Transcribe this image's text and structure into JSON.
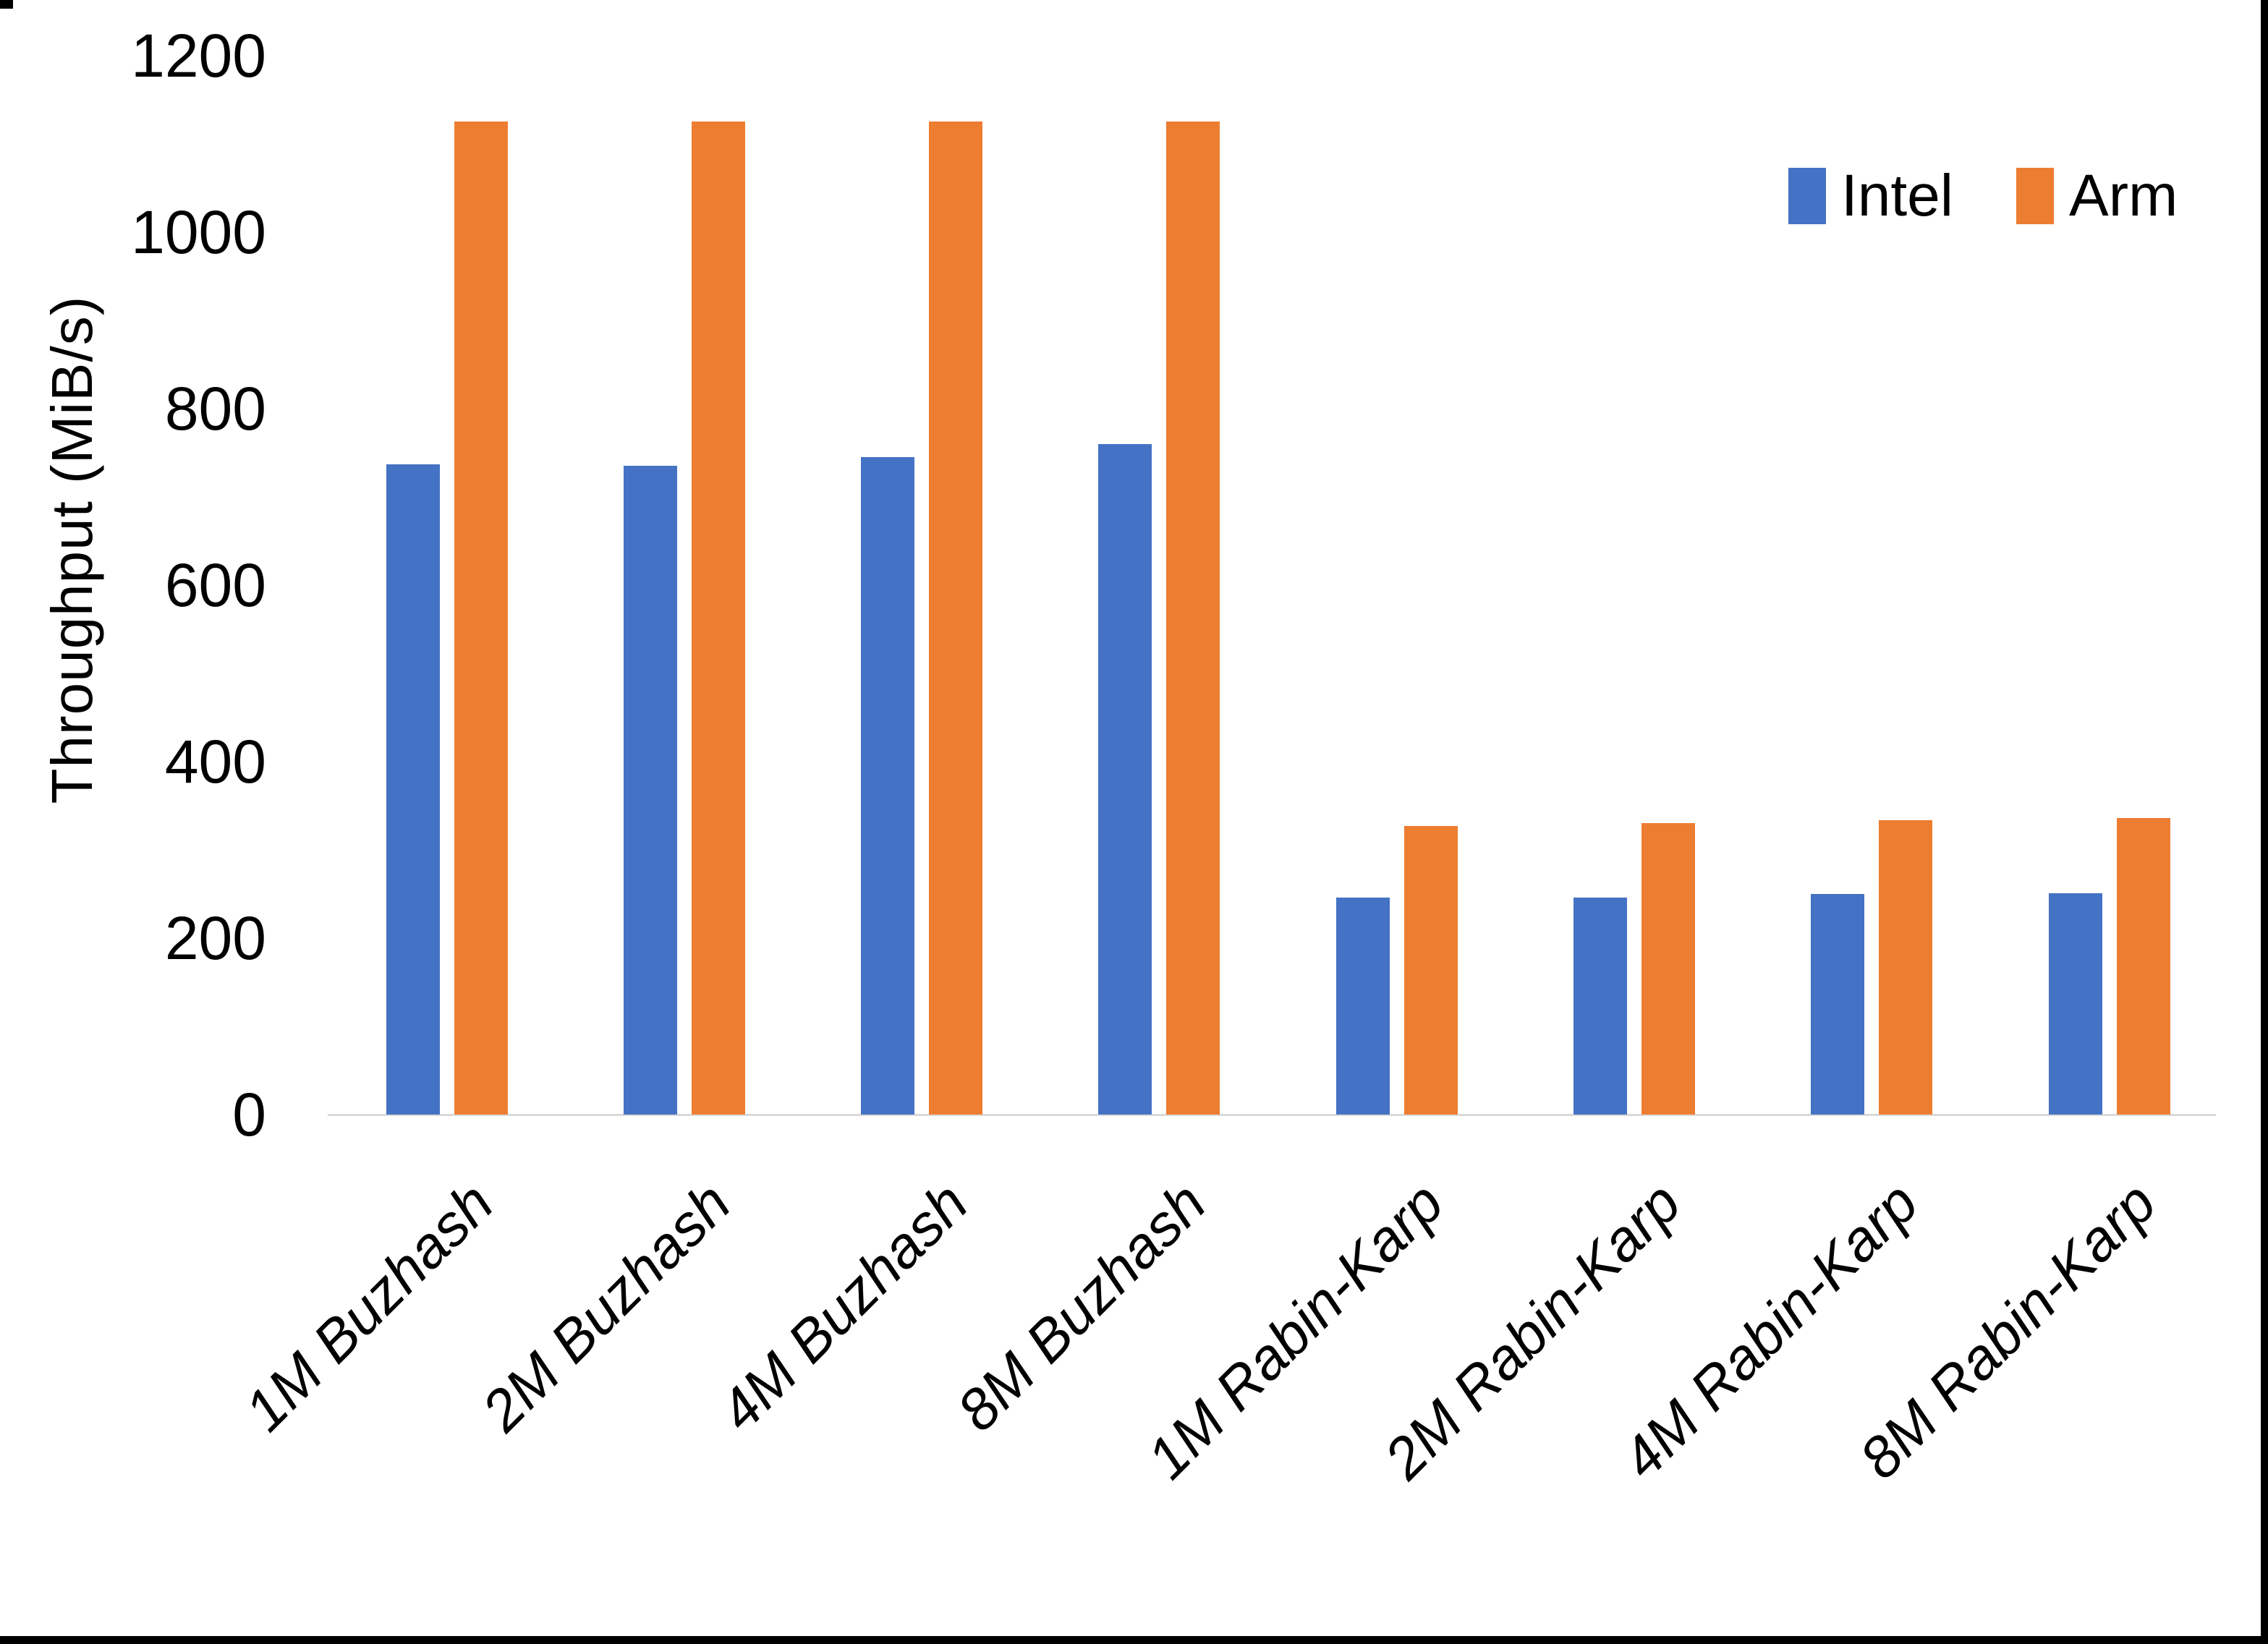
{
  "chart_data": {
    "type": "bar",
    "title": "",
    "ylabel": "Throughput (MiB/s)",
    "xlabel": "",
    "ylim": [
      0,
      1200
    ],
    "yticks": [
      0,
      200,
      400,
      600,
      800,
      1000,
      1200
    ],
    "grid": false,
    "legend_position": "top-right",
    "categories": [
      "1M Buzhash",
      "2M Buzhash",
      "4M Buzhash",
      "8M Buzhash",
      "1M Rabin-Karp",
      "2M Rabin-Karp",
      "4M Rabin-Karp",
      "8M Rabin-Karp"
    ],
    "series": [
      {
        "name": "Intel",
        "color": "#4472C4",
        "values": [
          737,
          735,
          745,
          760,
          246,
          246,
          250,
          251
        ]
      },
      {
        "name": "Arm",
        "color": "#ED7D31",
        "values": [
          1125,
          1125,
          1125,
          1125,
          327,
          330,
          334,
          336
        ]
      }
    ],
    "axis_line_color": "#D9D9D9",
    "text_color": "#000000"
  }
}
